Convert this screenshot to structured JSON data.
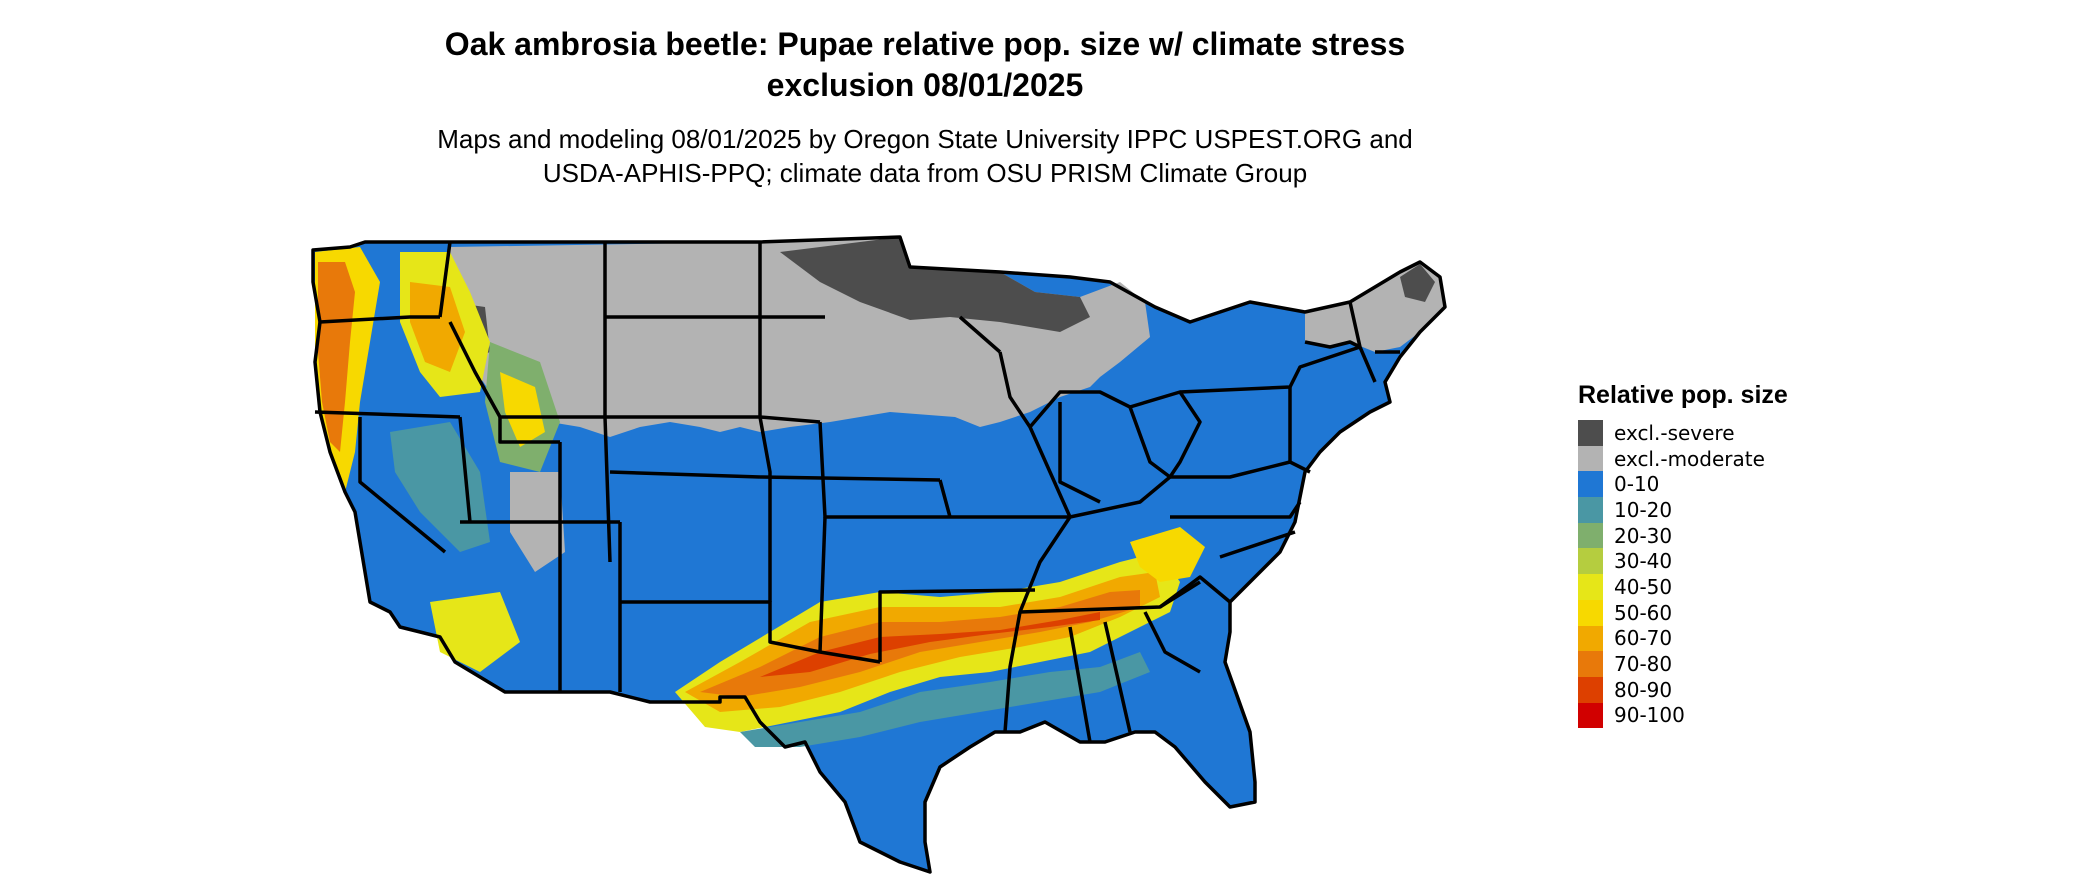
{
  "title_line1": "Oak ambrosia beetle: Pupae relative pop. size w/ climate stress",
  "title_line2": "exclusion 08/01/2025",
  "subtitle_line1": "Maps and modeling 08/01/2025 by Oregon State University IPPC USPEST.ORG and",
  "subtitle_line2": "USDA-APHIS-PPQ; climate data from OSU PRISM Climate Group",
  "legend": {
    "title": "Relative pop. size",
    "items": [
      {
        "label": "excl.-severe",
        "color": "#4d4d4d"
      },
      {
        "label": "excl.-moderate",
        "color": "#b3b3b3"
      },
      {
        "label": "0-10",
        "color": "#1f77d4"
      },
      {
        "label": "10-20",
        "color": "#4a97a4"
      },
      {
        "label": "20-30",
        "color": "#7faf6d"
      },
      {
        "label": "30-40",
        "color": "#b5cd3f"
      },
      {
        "label": "40-50",
        "color": "#e6e618"
      },
      {
        "label": "50-60",
        "color": "#f7d900"
      },
      {
        "label": "60-70",
        "color": "#f1a900"
      },
      {
        "label": "70-80",
        "color": "#e8790a"
      },
      {
        "label": "80-90",
        "color": "#dd4000"
      },
      {
        "label": "90-100",
        "color": "#d10000"
      }
    ]
  }
}
